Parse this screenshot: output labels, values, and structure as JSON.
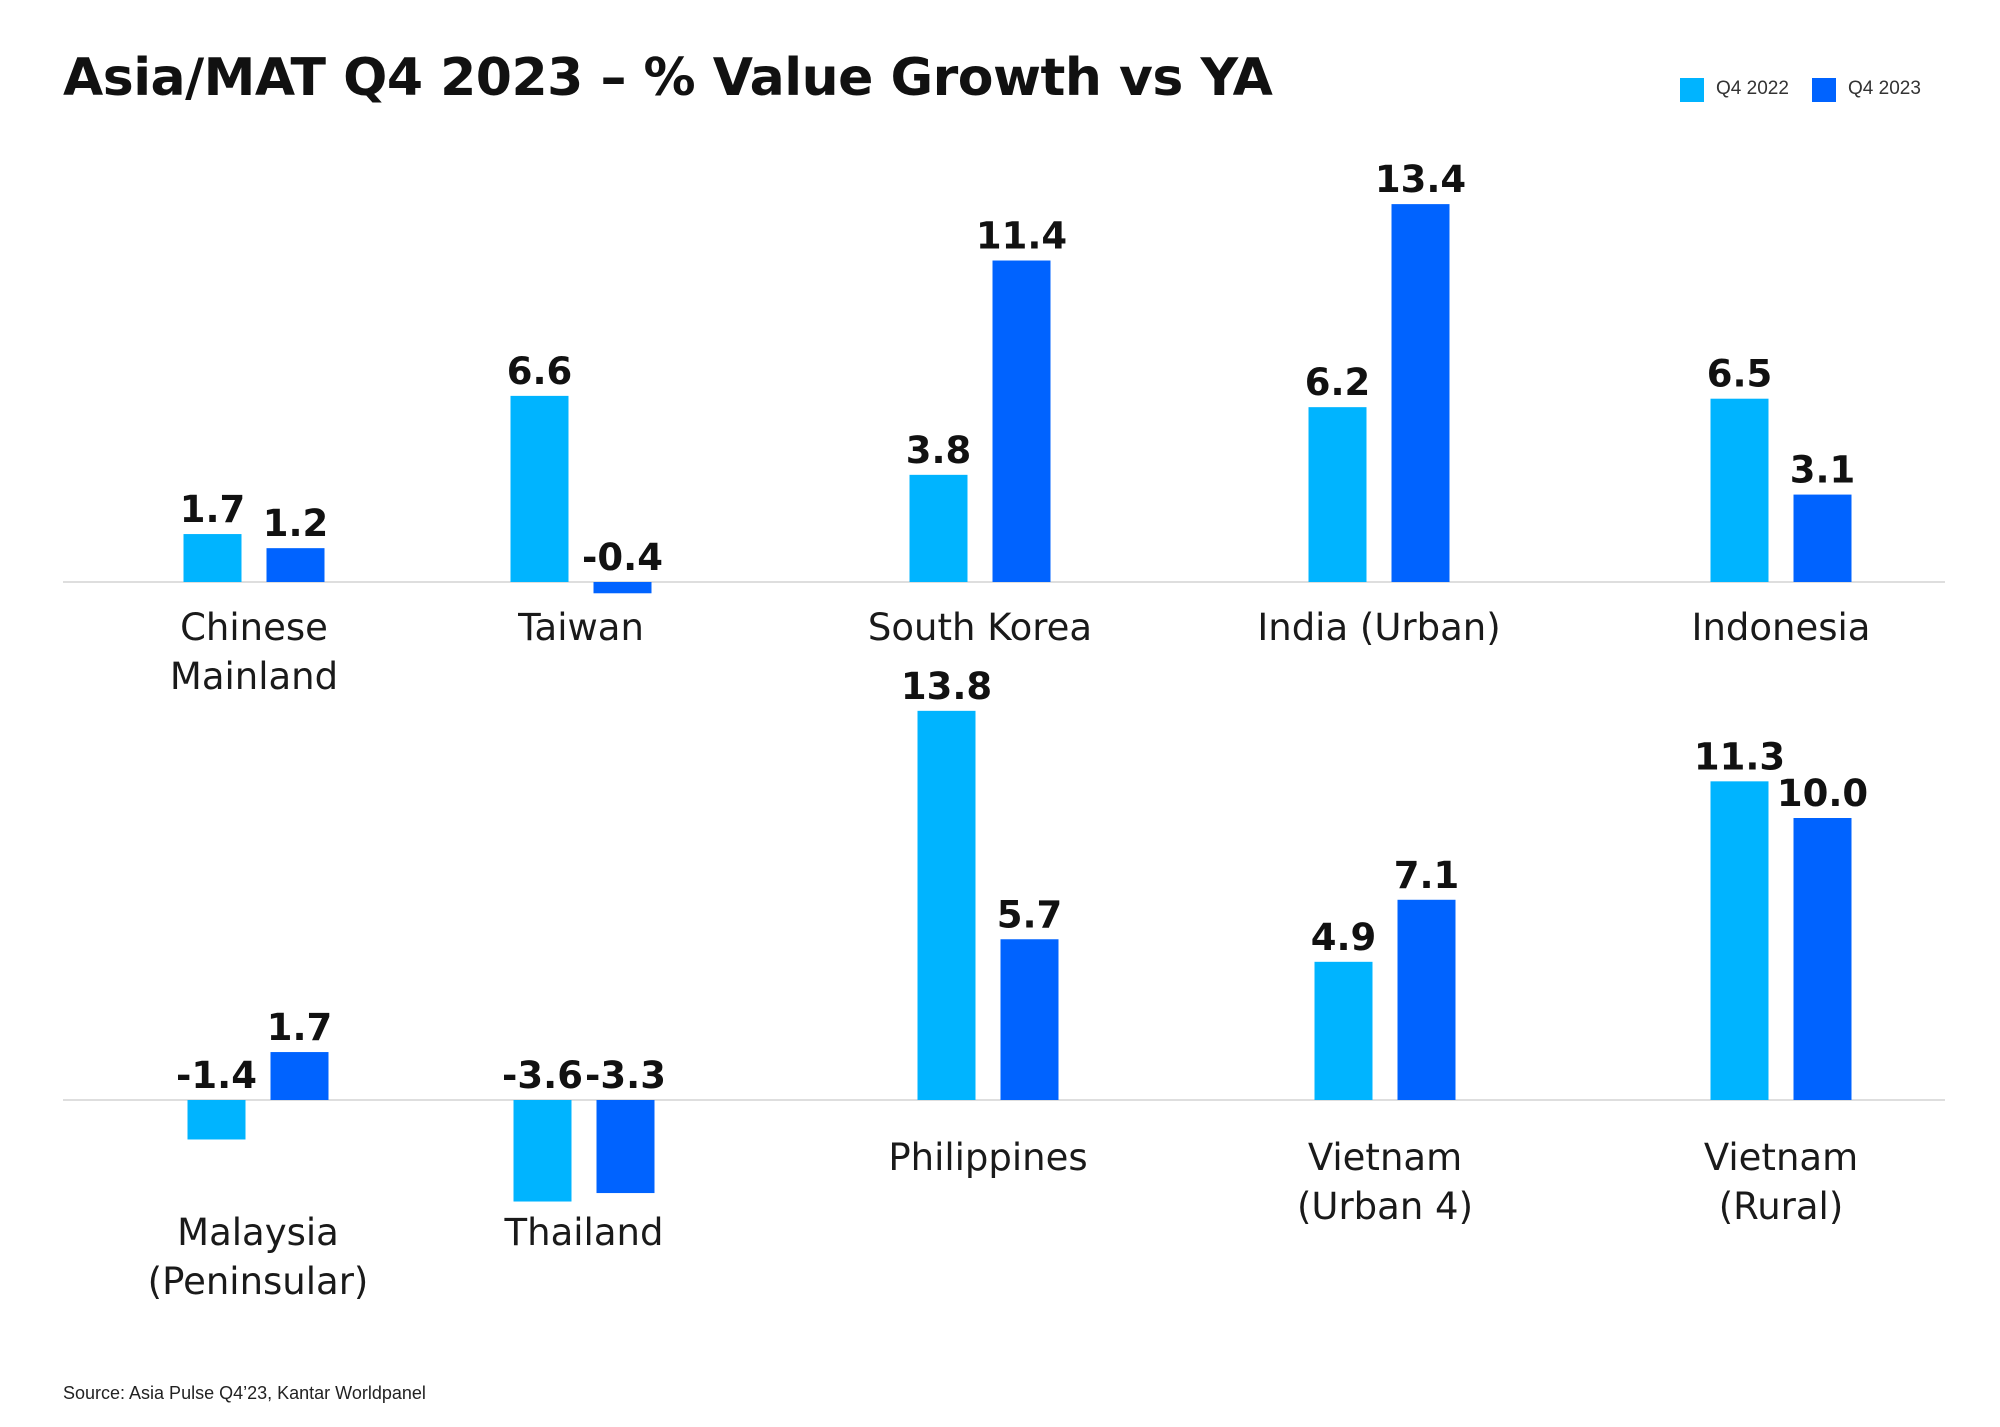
{
  "title": "Asia/MAT Q4 2023 – % Value Growth vs YA",
  "source": "Source: Asia Pulse Q4’23, Kantar Worldpanel",
  "legend": [
    {
      "label": "Q4 2022",
      "color": "#00B4FF"
    },
    {
      "label": "Q4 2023",
      "color": "#0063FF"
    }
  ],
  "chart_data": [
    {
      "type": "bar",
      "categories": [
        "Chinese Mainland",
        "Taiwan",
        "South Korea",
        "India (Urban)",
        "Indonesia"
      ],
      "category_lines": [
        [
          "Chinese",
          "Mainland"
        ],
        [
          "Taiwan"
        ],
        [
          "South Korea"
        ],
        [
          "India (Urban)"
        ],
        [
          "Indonesia"
        ]
      ],
      "series": [
        {
          "name": "Q4 2022",
          "values": [
            1.7,
            6.6,
            3.8,
            6.2,
            6.5
          ],
          "labels": [
            "1.7",
            "6.6",
            "3.8",
            "6.2",
            "6.5"
          ],
          "color": "#00B4FF"
        },
        {
          "name": "Q4 2023",
          "values": [
            1.2,
            -0.4,
            11.4,
            13.4,
            3.1
          ],
          "labels": [
            "1.2",
            "-0.4",
            "11.4",
            "13.4",
            "3.1"
          ],
          "color": "#0063FF"
        }
      ],
      "grid": false,
      "legend_position": "top-right"
    },
    {
      "type": "bar",
      "categories": [
        "Malaysia (Peninsular)",
        "Thailand",
        "Philippines",
        "Vietnam (Urban 4)",
        "Vietnam (Rural)"
      ],
      "category_lines": [
        [
          "Malaysia",
          "(Peninsular)"
        ],
        [
          "Thailand"
        ],
        [
          "Philippines"
        ],
        [
          "Vietnam",
          "(Urban 4)"
        ],
        [
          "Vietnam",
          "(Rural)"
        ]
      ],
      "series": [
        {
          "name": "Q4 2022",
          "values": [
            -1.4,
            -3.6,
            13.8,
            4.9,
            11.3
          ],
          "labels": [
            "-1.4",
            "-3.6",
            "13.8",
            "4.9",
            "11.3"
          ],
          "color": "#00B4FF"
        },
        {
          "name": "Q4 2023",
          "values": [
            1.7,
            -3.3,
            5.7,
            7.1,
            10.0
          ],
          "labels": [
            "1.7",
            "-3.3",
            "5.7",
            "7.1",
            "10.0"
          ],
          "color": "#0063FF"
        }
      ],
      "grid": false,
      "legend_position": "top-right"
    }
  ]
}
